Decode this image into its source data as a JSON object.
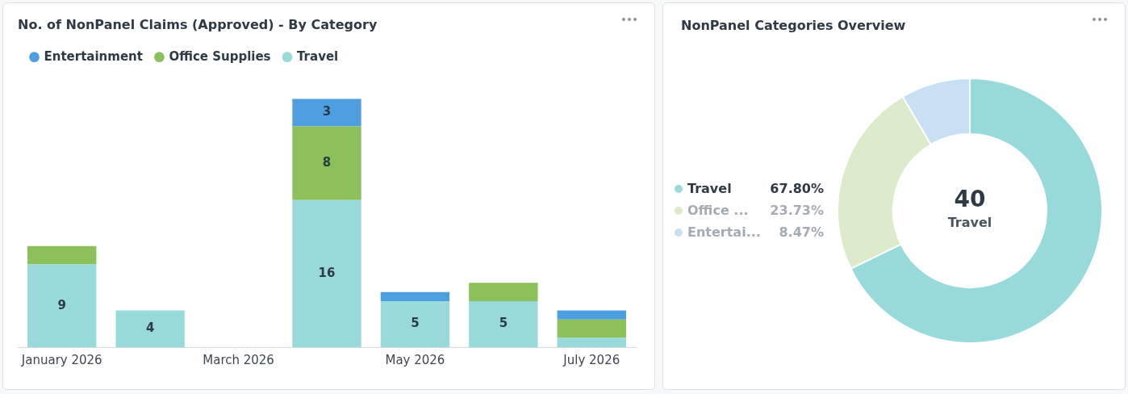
{
  "chart_data": [
    {
      "type": "bar",
      "title": "No. of NonPanel Claims (Approved) - By Category",
      "stacked": true,
      "legend": "top left",
      "grid": false,
      "categories": [
        "January 2026",
        null,
        "March 2026",
        null,
        "May 2026",
        null,
        "July 2026"
      ],
      "series": [
        {
          "name": "Travel",
          "color": "#98dad9",
          "values": [
            9,
            4,
            0,
            16,
            5,
            5,
            1
          ],
          "value_labels": [
            "9",
            "4",
            null,
            "16",
            "5",
            "5",
            null
          ]
        },
        {
          "name": "Office Supplies",
          "color": "#8bc05a",
          "values": [
            2,
            0,
            0,
            8,
            0,
            2,
            2
          ],
          "value_labels": [
            null,
            null,
            null,
            "8",
            null,
            null,
            null
          ]
        },
        {
          "name": "Entertainment",
          "color": "#4e9fe0",
          "values": [
            0,
            0,
            0,
            3,
            1,
            0,
            1
          ],
          "value_labels": [
            null,
            null,
            null,
            "3",
            null,
            null,
            null
          ]
        }
      ]
    },
    {
      "type": "donut",
      "title": "NonPanel Categories Overview",
      "legend": "left",
      "categories": [
        "Travel",
        "Office ...",
        "Entertai..."
      ],
      "values": [
        67.8,
        23.73,
        8.47
      ],
      "colors": [
        "#98dad9",
        "#dcebcc",
        "#c9e0f4"
      ],
      "value_labels": [
        "67.80%",
        "23.73%",
        "8.47%"
      ],
      "annotations": [
        "40",
        "Travel"
      ]
    }
  ]
}
